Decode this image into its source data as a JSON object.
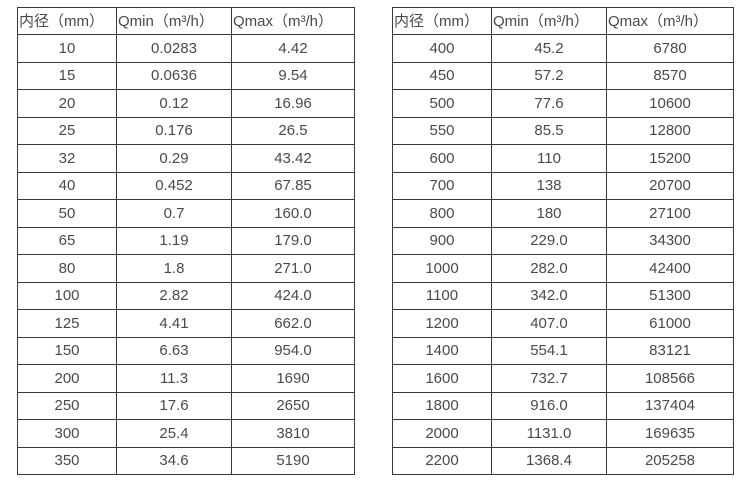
{
  "colors": {
    "border": "#3a3a3a",
    "text": "#4a4a4a",
    "background": "#ffffff"
  },
  "tables": [
    {
      "name": "flow-spec-small-diameters",
      "headers": [
        "内径（mm）",
        "Qmin（m³/h）",
        "Qmax（m³/h）"
      ],
      "rows": [
        [
          "10",
          "0.0283",
          "4.42"
        ],
        [
          "15",
          "0.0636",
          "9.54"
        ],
        [
          "20",
          "0.12",
          "16.96"
        ],
        [
          "25",
          "0.176",
          "26.5"
        ],
        [
          "32",
          "0.29",
          "43.42"
        ],
        [
          "40",
          "0.452",
          "67.85"
        ],
        [
          "50",
          "0.7",
          "160.0"
        ],
        [
          "65",
          "1.19",
          "179.0"
        ],
        [
          "80",
          "1.8",
          "271.0"
        ],
        [
          "100",
          "2.82",
          "424.0"
        ],
        [
          "125",
          "4.41",
          "662.0"
        ],
        [
          "150",
          "6.63",
          "954.0"
        ],
        [
          "200",
          "11.3",
          "1690"
        ],
        [
          "250",
          "17.6",
          "2650"
        ],
        [
          "300",
          "25.4",
          "3810"
        ],
        [
          "350",
          "34.6",
          "5190"
        ]
      ]
    },
    {
      "name": "flow-spec-large-diameters",
      "headers": [
        "内径（mm）",
        "Qmin（m³/h）",
        "Qmax（m³/h）"
      ],
      "rows": [
        [
          "400",
          "45.2",
          "6780"
        ],
        [
          "450",
          "57.2",
          "8570"
        ],
        [
          "500",
          "77.6",
          "10600"
        ],
        [
          "550",
          "85.5",
          "12800"
        ],
        [
          "600",
          "110",
          "15200"
        ],
        [
          "700",
          "138",
          "20700"
        ],
        [
          "800",
          "180",
          "27100"
        ],
        [
          "900",
          "229.0",
          "34300"
        ],
        [
          "1000",
          "282.0",
          "42400"
        ],
        [
          "1100",
          "342.0",
          "51300"
        ],
        [
          "1200",
          "407.0",
          "61000"
        ],
        [
          "1400",
          "554.1",
          "83121"
        ],
        [
          "1600",
          "732.7",
          "108566"
        ],
        [
          "1800",
          "916.0",
          "137404"
        ],
        [
          "2000",
          "1131.0",
          "169635"
        ],
        [
          "2200",
          "1368.4",
          "205258"
        ]
      ]
    }
  ]
}
